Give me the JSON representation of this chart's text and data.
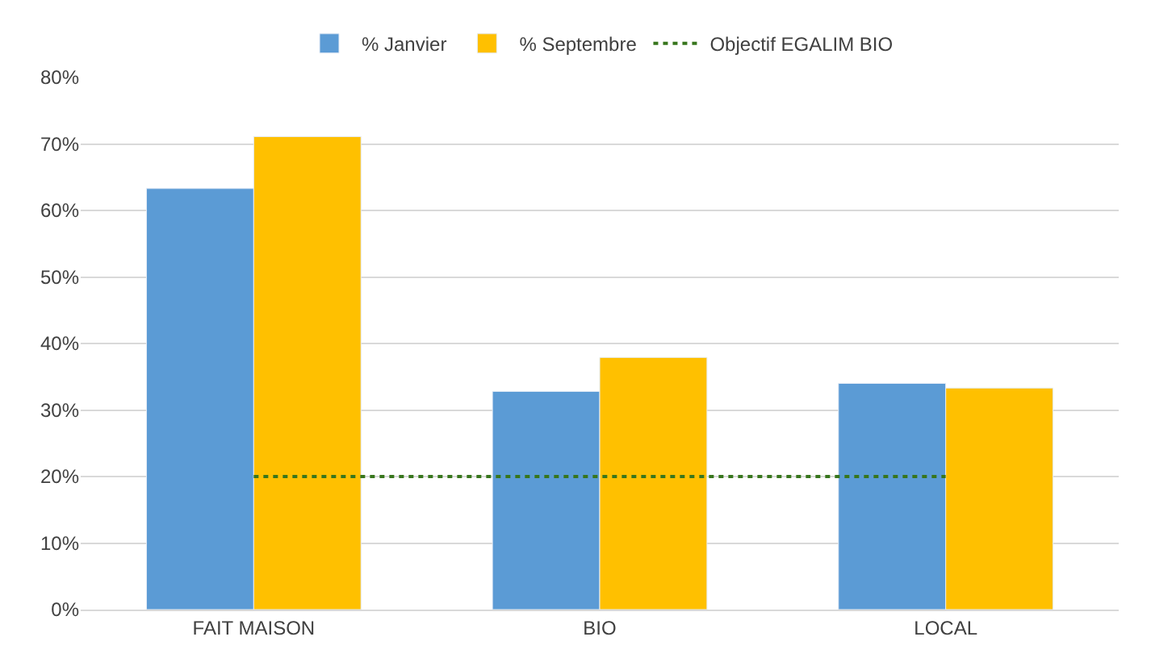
{
  "chart_data": {
    "type": "bar",
    "categories": [
      "FAIT MAISON",
      "BIO",
      "LOCAL"
    ],
    "series": [
      {
        "name": "% Janvier",
        "color": "#5b9bd5",
        "values": [
          63.3,
          32.8,
          34.0
        ]
      },
      {
        "name": "% Septembre",
        "color": "#ffc000",
        "values": [
          71.1,
          37.9,
          33.3
        ]
      },
      {
        "name": "Objectif EGALIM BIO",
        "type": "line",
        "color": "#38761d",
        "values": [
          20,
          20,
          20
        ],
        "line_style": "dotted",
        "marker": "none"
      }
    ],
    "ylim": [
      0,
      80
    ],
    "yticks": [
      {
        "value": 0,
        "label": "0%"
      },
      {
        "value": 10,
        "label": "10%"
      },
      {
        "value": 20,
        "label": "20%"
      },
      {
        "value": 30,
        "label": "30%"
      },
      {
        "value": 40,
        "label": "40%"
      },
      {
        "value": 50,
        "label": "50%"
      },
      {
        "value": 60,
        "label": "60%"
      },
      {
        "value": 70,
        "label": "70%"
      },
      {
        "value": 80,
        "label": "80%"
      }
    ],
    "grid": "y",
    "legend": "top"
  }
}
